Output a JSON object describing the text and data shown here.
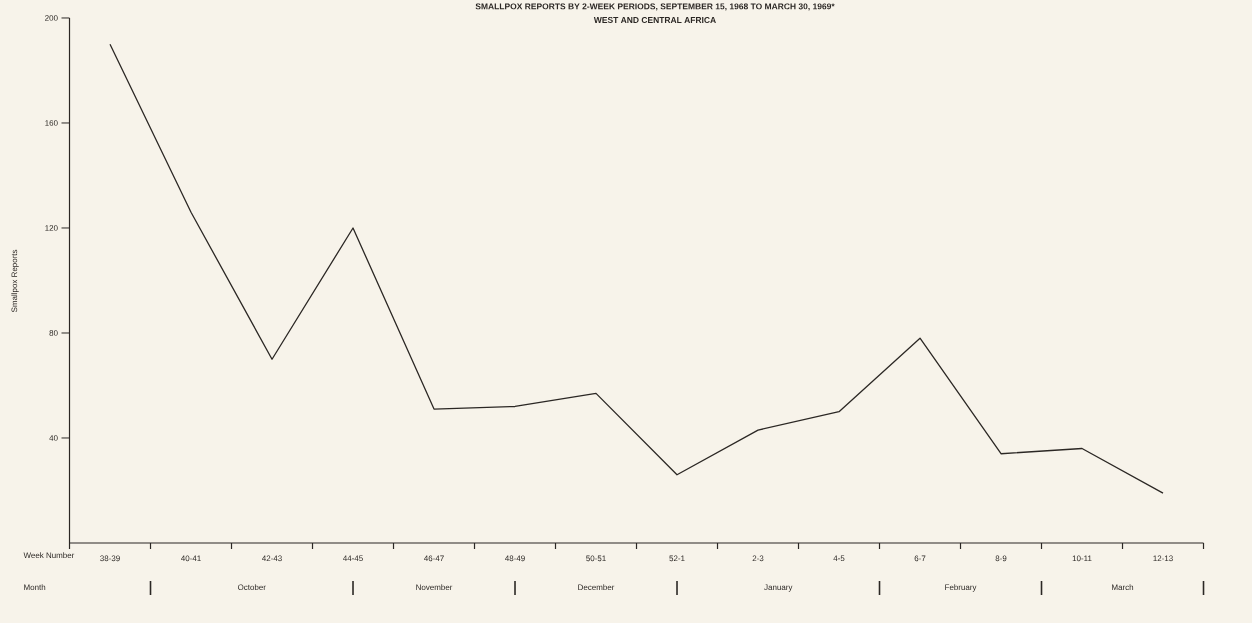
{
  "chart_data": {
    "type": "line",
    "title": "SMALLPOX REPORTS BY 2-WEEK PERIODS, SEPTEMBER 15, 1968 TO MARCH 30, 1969*",
    "subtitle": "WEST AND CENTRAL AFRICA",
    "xlabel": "Week Number",
    "ylabel": "Smallpox Reports",
    "categories": [
      "38-39",
      "40-41",
      "42-43",
      "44-45",
      "46-47",
      "48-49",
      "50-51",
      "52-1",
      "2-3",
      "4-5",
      "6-7",
      "8-9",
      "10-11",
      "12-13"
    ],
    "values": [
      190,
      126,
      70,
      120,
      51,
      52,
      57,
      26,
      43,
      50,
      78,
      34,
      36,
      19
    ],
    "color": "#2b2724",
    "ylim": [
      0,
      200
    ],
    "yticks": [
      40,
      80,
      120,
      160,
      200
    ],
    "annotations": [
      "Month",
      "October",
      "November",
      "December",
      "January",
      "February",
      "March"
    ]
  }
}
